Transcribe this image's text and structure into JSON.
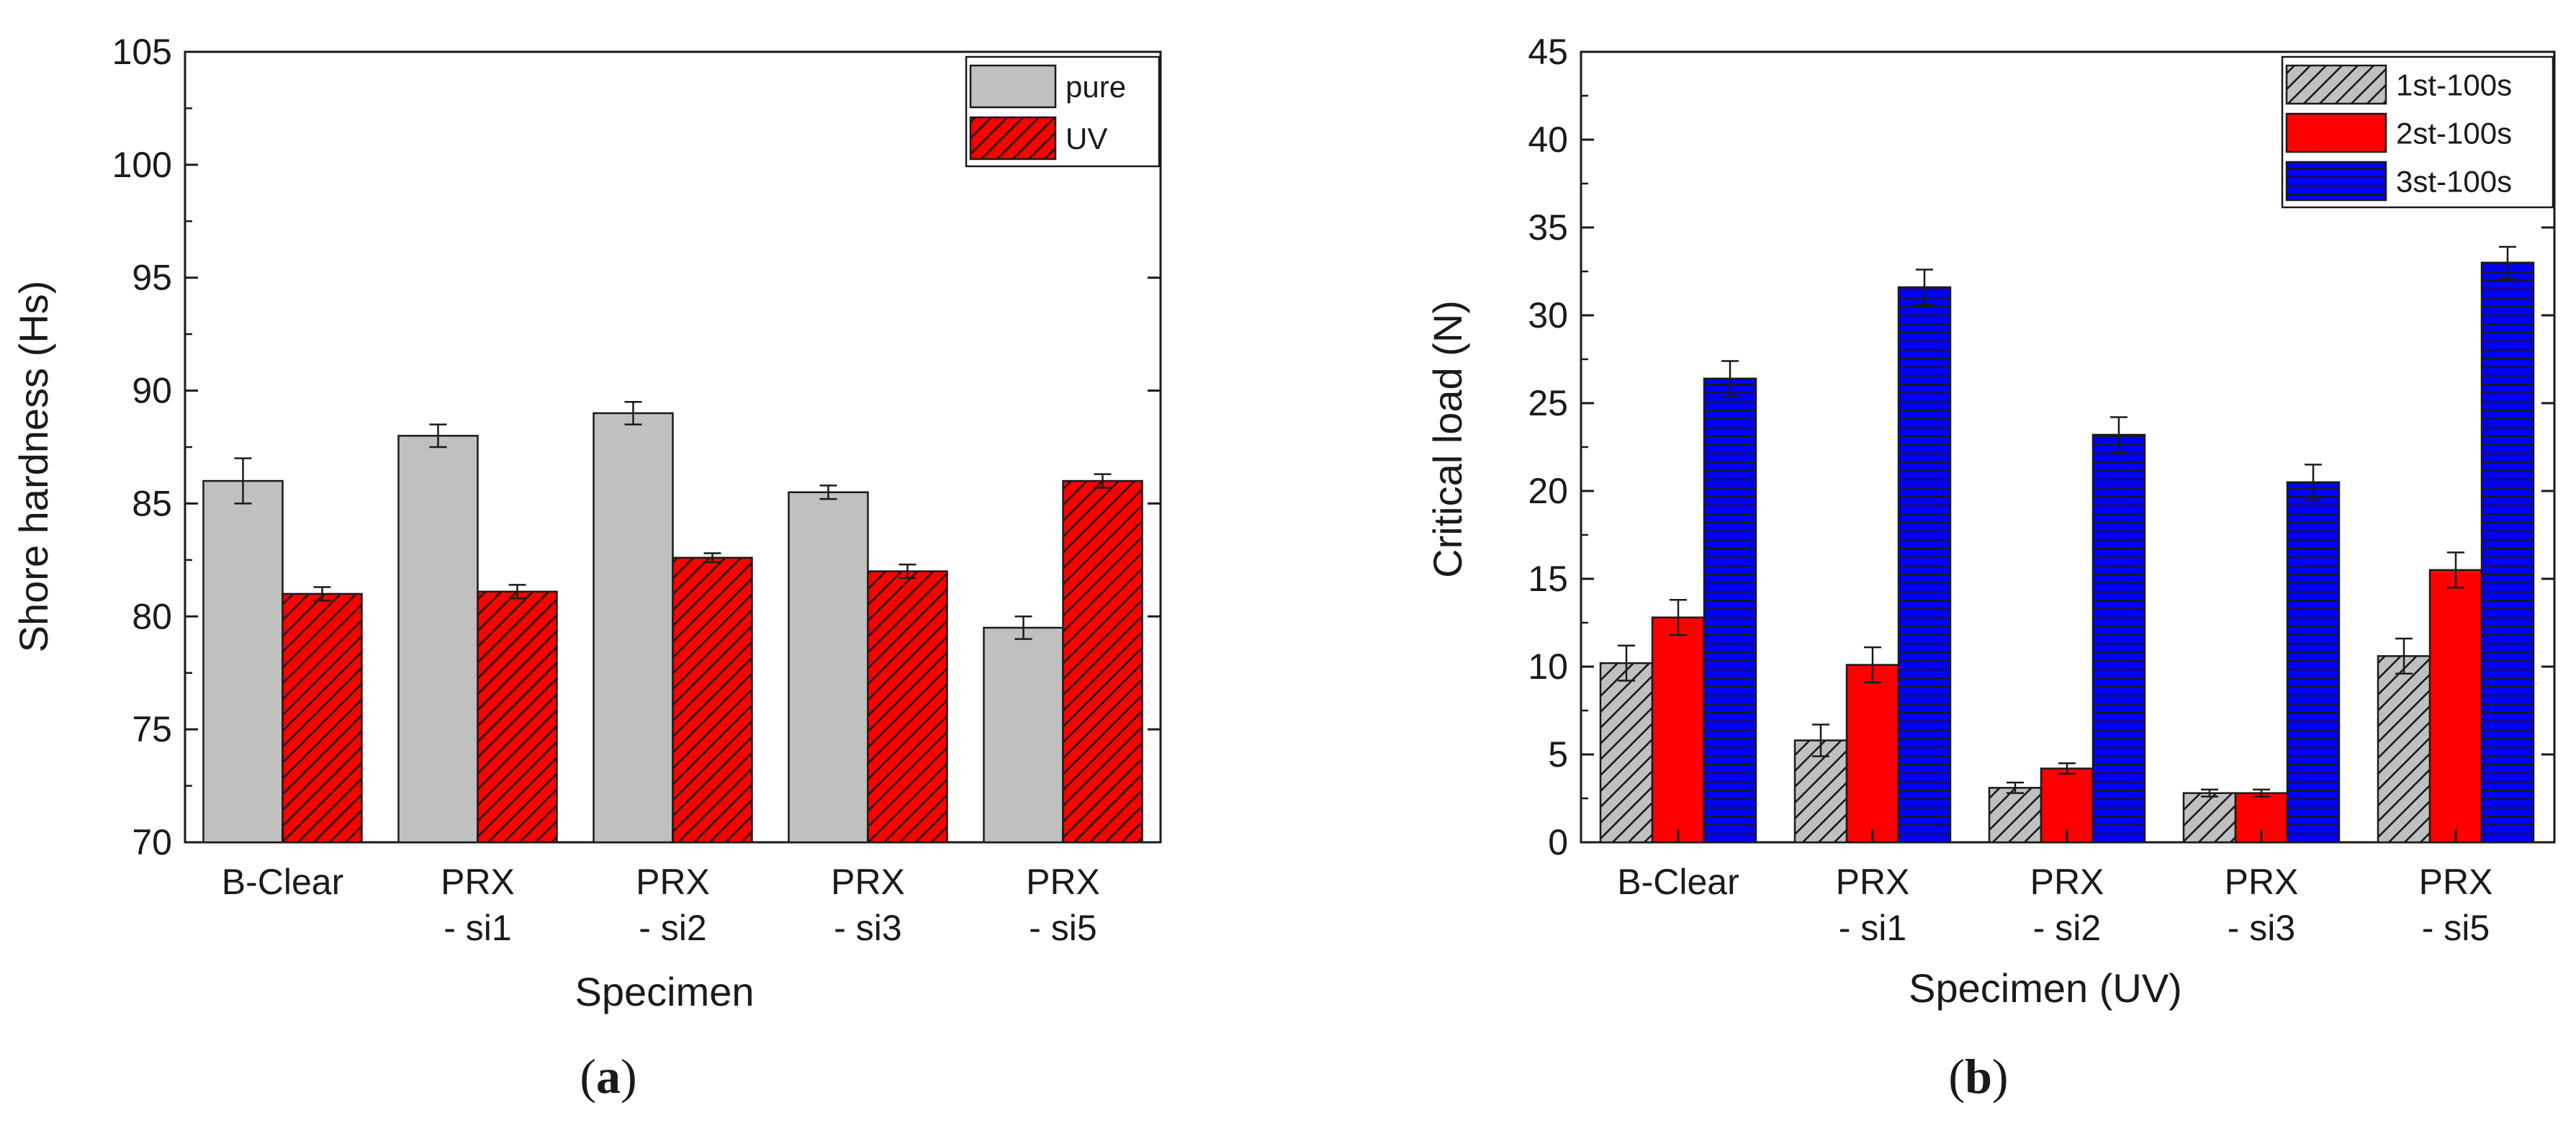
{
  "chart_data": [
    {
      "type": "bar",
      "panel": "(a)",
      "panel_paren_open": "(",
      "panel_letter": "a",
      "panel_paren_close": ")",
      "xlabel": "Specimen",
      "ylabel": "Shore hardness (Hs)",
      "ylim": [
        70,
        105
      ],
      "yticks": [
        70,
        75,
        80,
        85,
        90,
        95,
        100,
        105
      ],
      "grid": false,
      "legend_position": "top-right",
      "categories": [
        [
          "B-Clear"
        ],
        [
          "PRX",
          "- si1"
        ],
        [
          "PRX",
          "- si2"
        ],
        [
          "PRX",
          "- si3"
        ],
        [
          "PRX",
          "- si5"
        ]
      ],
      "series": [
        {
          "name": "pure",
          "color": "#c0c0c0",
          "pattern": "none",
          "values": [
            86.0,
            88.0,
            89.0,
            85.5,
            79.5
          ],
          "errors": [
            1.0,
            0.5,
            0.5,
            0.3,
            0.5
          ]
        },
        {
          "name": "UV",
          "color": "#ff0000",
          "pattern": "diagonal",
          "values": [
            81.0,
            81.1,
            82.6,
            82.0,
            86.0
          ],
          "errors": [
            0.3,
            0.3,
            0.2,
            0.3,
            0.3
          ]
        }
      ]
    },
    {
      "type": "bar",
      "panel": "(b)",
      "panel_paren_open": "(",
      "panel_letter": "b",
      "panel_paren_close": ")",
      "xlabel": "Specimen (UV)",
      "ylabel": "Critical load (N)",
      "ylim": [
        0,
        45
      ],
      "yticks": [
        0,
        5,
        10,
        15,
        20,
        25,
        30,
        35,
        40,
        45
      ],
      "grid": false,
      "legend_position": "top-right",
      "categories": [
        [
          "B-Clear"
        ],
        [
          "PRX",
          "- si1"
        ],
        [
          "PRX",
          "- si2"
        ],
        [
          "PRX",
          "- si3"
        ],
        [
          "PRX",
          "- si5"
        ]
      ],
      "series": [
        {
          "name": "1st-100s",
          "color": "#c0c0c0",
          "pattern": "diagonal",
          "values": [
            10.2,
            5.8,
            3.1,
            2.8,
            10.6
          ],
          "errors": [
            1.0,
            0.9,
            0.3,
            0.2,
            1.0
          ]
        },
        {
          "name": "2st-100s",
          "color": "#ff0000",
          "pattern": "none",
          "values": [
            12.8,
            10.1,
            4.2,
            2.8,
            15.5
          ],
          "errors": [
            1.0,
            1.0,
            0.3,
            0.2,
            1.0
          ]
        },
        {
          "name": "3st-100s",
          "color": "#0000ff",
          "pattern": "horizontal",
          "values": [
            26.4,
            31.6,
            23.2,
            20.5,
            33.0
          ],
          "errors": [
            1.0,
            1.0,
            1.0,
            1.0,
            0.9
          ]
        }
      ]
    }
  ]
}
